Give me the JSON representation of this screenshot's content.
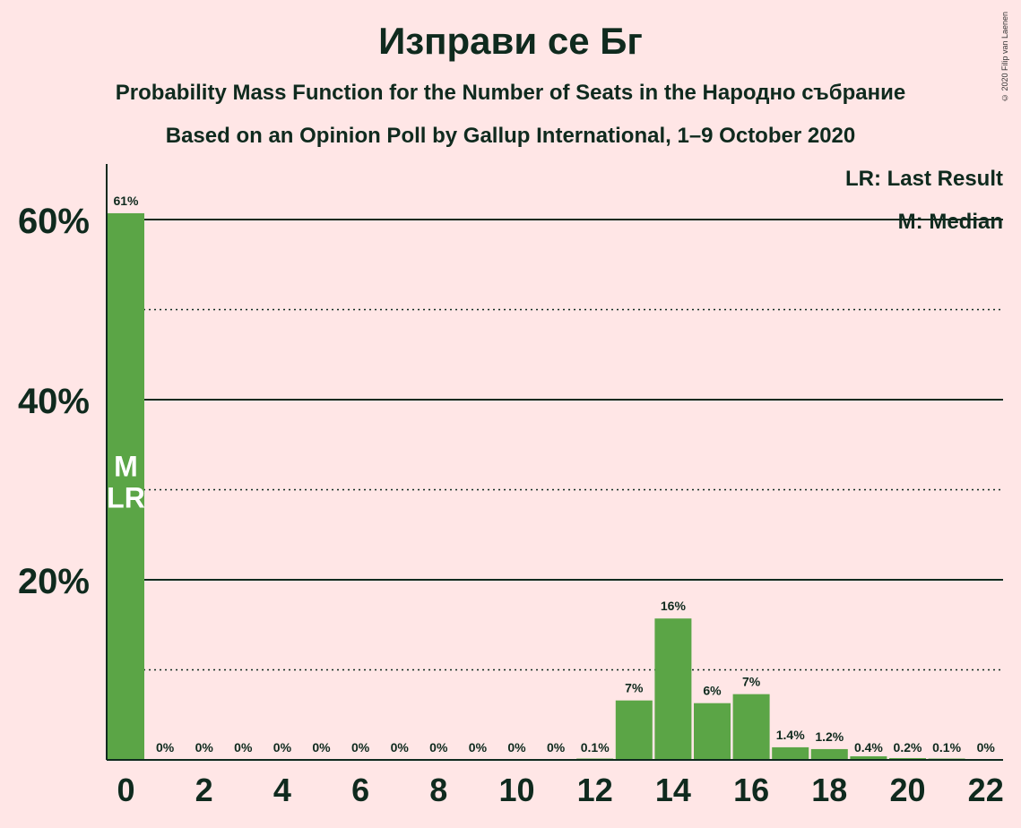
{
  "title": "Изправи се Бг",
  "subtitle1": "Probability Mass Function for the Number of Seats in the Народно събрание",
  "subtitle2": "Based on an Opinion Poll by Gallup International, 1–9 October 2020",
  "copyright": "© 2020 Filip van Laenen",
  "legend": {
    "lr": "LR: Last Result",
    "m": "M: Median"
  },
  "markers": {
    "median": "M",
    "last_result": "LR"
  },
  "colors": {
    "bar": "#5BA546",
    "background": "#FFE6E6",
    "text": "#0f2a1e"
  },
  "chart_data": {
    "type": "bar",
    "categories": [
      0,
      1,
      2,
      3,
      4,
      5,
      6,
      7,
      8,
      9,
      10,
      11,
      12,
      13,
      14,
      15,
      16,
      17,
      18,
      19,
      20,
      21,
      22
    ],
    "values": [
      60.7,
      0,
      0,
      0,
      0,
      0,
      0,
      0,
      0,
      0,
      0,
      0,
      0.1,
      6.6,
      15.7,
      6.3,
      7.3,
      1.4,
      1.2,
      0.4,
      0.2,
      0.1,
      0
    ],
    "data_labels": [
      "61%",
      "0%",
      "0%",
      "0%",
      "0%",
      "0%",
      "0%",
      "0%",
      "0%",
      "0%",
      "0%",
      "0%",
      "0.1%",
      "7%",
      "16%",
      "6%",
      "7%",
      "1.4%",
      "1.2%",
      "0.4%",
      "0.2%",
      "0.1%",
      "0%"
    ],
    "x_tick_labels": [
      "0",
      "2",
      "4",
      "6",
      "8",
      "10",
      "12",
      "14",
      "16",
      "18",
      "20",
      "22"
    ],
    "y_tick_labels": [
      "20%",
      "40%",
      "60%"
    ],
    "ylim": [
      0,
      66
    ],
    "median_seat": 0,
    "last_result_seat": 0
  }
}
